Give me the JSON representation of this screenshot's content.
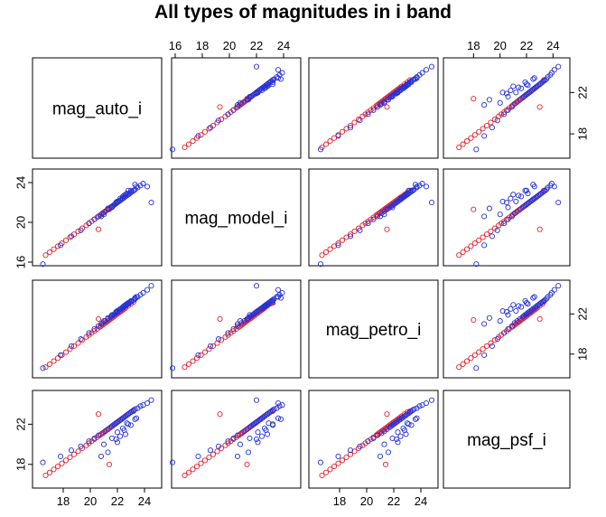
{
  "chart_data": {
    "type": "scatter",
    "title": "All types of magnitudes in i band",
    "layout": "scatterplot-matrix",
    "variables": [
      "mag_auto_i",
      "mag_model_i",
      "mag_petro_i",
      "mag_psf_i"
    ],
    "axis_range": [
      16,
      25
    ],
    "ticks": {
      "mag_auto_i": [
        16,
        18,
        20,
        22,
        24
      ],
      "mag_model_i": [
        16,
        20,
        24
      ],
      "mag_petro_i": [
        18,
        20,
        22,
        24
      ],
      "mag_psf_i": [
        18,
        22
      ]
    },
    "tick_labels_top": {
      "col2": [
        "16",
        "18",
        "20",
        "22",
        "24"
      ],
      "col4": [
        "18",
        "20",
        "22",
        "24"
      ]
    },
    "tick_labels_bottom": {
      "col1": [
        "18",
        "20",
        "22",
        "24"
      ],
      "col3": [
        "18",
        "20",
        "22",
        "24"
      ]
    },
    "tick_labels_left": {
      "row2": [
        "16",
        "20",
        "24"
      ],
      "row4": [
        "18",
        "22"
      ]
    },
    "tick_labels_right": {
      "row1": [
        "18",
        "22"
      ],
      "row3": [
        "18",
        "22"
      ]
    },
    "series": [
      {
        "color": "#e8202a",
        "auto": [
          16.7,
          17.0,
          17.3,
          17.6,
          17.9,
          18.2,
          18.5,
          18.8,
          19.1,
          19.4,
          19.7,
          19.9,
          20.1,
          20.3,
          20.5,
          20.7,
          20.8,
          20.9,
          21.0,
          21.1,
          21.2,
          21.3,
          21.4,
          21.5,
          21.6,
          21.7,
          21.8,
          21.9,
          22.0,
          22.1,
          22.2,
          22.3,
          22.4,
          22.5,
          22.6,
          22.8,
          23.0,
          23.2,
          21.4,
          20.6
        ],
        "model": [
          16.7,
          17.0,
          17.3,
          17.6,
          17.9,
          18.2,
          18.5,
          18.8,
          19.1,
          19.4,
          19.7,
          19.9,
          20.1,
          20.3,
          20.5,
          20.7,
          20.8,
          20.9,
          21.0,
          21.1,
          21.2,
          21.3,
          21.4,
          21.5,
          21.6,
          21.7,
          21.8,
          21.9,
          22.0,
          22.1,
          22.2,
          22.3,
          22.4,
          22.5,
          22.6,
          22.8,
          23.0,
          23.2,
          21.3,
          19.3
        ],
        "petro": [
          16.7,
          17.0,
          17.3,
          17.6,
          17.9,
          18.2,
          18.5,
          18.8,
          19.1,
          19.4,
          19.7,
          19.9,
          20.1,
          20.3,
          20.5,
          20.7,
          20.8,
          20.9,
          21.0,
          21.1,
          21.2,
          21.3,
          21.4,
          21.5,
          21.6,
          21.7,
          21.8,
          21.9,
          22.0,
          22.1,
          22.2,
          22.3,
          22.4,
          22.5,
          22.6,
          22.8,
          23.0,
          23.2,
          21.4,
          21.5
        ],
        "psf": [
          16.9,
          17.2,
          17.5,
          17.8,
          18.1,
          18.4,
          18.7,
          19.0,
          19.3,
          19.6,
          19.9,
          20.1,
          20.3,
          20.5,
          20.7,
          20.9,
          21.0,
          21.1,
          21.2,
          21.3,
          21.4,
          21.5,
          21.6,
          21.7,
          21.8,
          21.9,
          22.0,
          22.1,
          22.2,
          22.3,
          22.4,
          22.5,
          22.6,
          22.7,
          22.8,
          23.0,
          23.2,
          23.3,
          18.0,
          23.0
        ]
      },
      {
        "color": "#2431d6",
        "auto": [
          16.5,
          17.8,
          18.6,
          19.3,
          19.9,
          20.3,
          20.6,
          20.9,
          21.1,
          21.3,
          21.5,
          21.6,
          21.7,
          21.8,
          21.9,
          22.0,
          22.1,
          22.2,
          22.3,
          22.4,
          22.5,
          22.6,
          22.7,
          22.8,
          22.9,
          23.0,
          23.1,
          23.2,
          23.3,
          23.5,
          23.7,
          23.9,
          24.2,
          24.5,
          21.0,
          21.6,
          22.0,
          22.4,
          22.8,
          23.3,
          21.3,
          22.0,
          22.6,
          20.8,
          22.2,
          23.0,
          21.9,
          22.5,
          23.4,
          22.7
        ],
        "model": [
          15.8,
          17.7,
          18.6,
          19.2,
          19.9,
          20.3,
          20.6,
          20.9,
          21.1,
          21.3,
          21.5,
          21.6,
          21.7,
          21.8,
          21.9,
          22.0,
          22.1,
          22.2,
          22.3,
          22.4,
          22.5,
          22.6,
          22.7,
          22.8,
          22.9,
          23.0,
          23.1,
          23.2,
          23.3,
          23.5,
          23.7,
          23.9,
          23.6,
          22.0,
          20.8,
          21.5,
          22.1,
          22.6,
          23.2,
          23.8,
          21.4,
          22.1,
          22.8,
          20.6,
          22.4,
          23.2,
          22.0,
          22.7,
          23.6,
          22.9
        ],
        "petro": [
          16.6,
          17.9,
          18.8,
          19.5,
          20.1,
          20.5,
          20.8,
          21.1,
          21.3,
          21.5,
          21.7,
          21.8,
          21.9,
          22.0,
          22.1,
          22.2,
          22.3,
          22.4,
          22.5,
          22.6,
          22.7,
          22.8,
          22.9,
          23.0,
          23.1,
          23.2,
          23.3,
          23.4,
          23.5,
          23.7,
          23.9,
          24.1,
          24.4,
          24.8,
          21.3,
          21.9,
          22.3,
          22.7,
          23.1,
          23.6,
          21.6,
          22.3,
          22.9,
          21.0,
          22.5,
          23.3,
          22.2,
          22.8,
          23.7,
          23.0
        ],
        "psf": [
          18.2,
          18.8,
          19.4,
          19.8,
          20.3,
          20.6,
          20.9,
          21.1,
          21.3,
          21.5,
          21.7,
          21.8,
          21.9,
          22.0,
          22.1,
          22.2,
          22.3,
          22.4,
          22.5,
          22.6,
          22.7,
          22.8,
          22.9,
          23.0,
          23.1,
          23.2,
          23.3,
          23.4,
          23.5,
          23.6,
          23.8,
          23.9,
          24.1,
          24.4,
          20.0,
          20.6,
          21.2,
          21.6,
          22.0,
          22.5,
          19.2,
          20.2,
          21.0,
          18.8,
          20.8,
          21.9,
          20.5,
          21.4,
          22.6,
          22.1
        ]
      }
    ],
    "grid": false,
    "legend": "none"
  }
}
